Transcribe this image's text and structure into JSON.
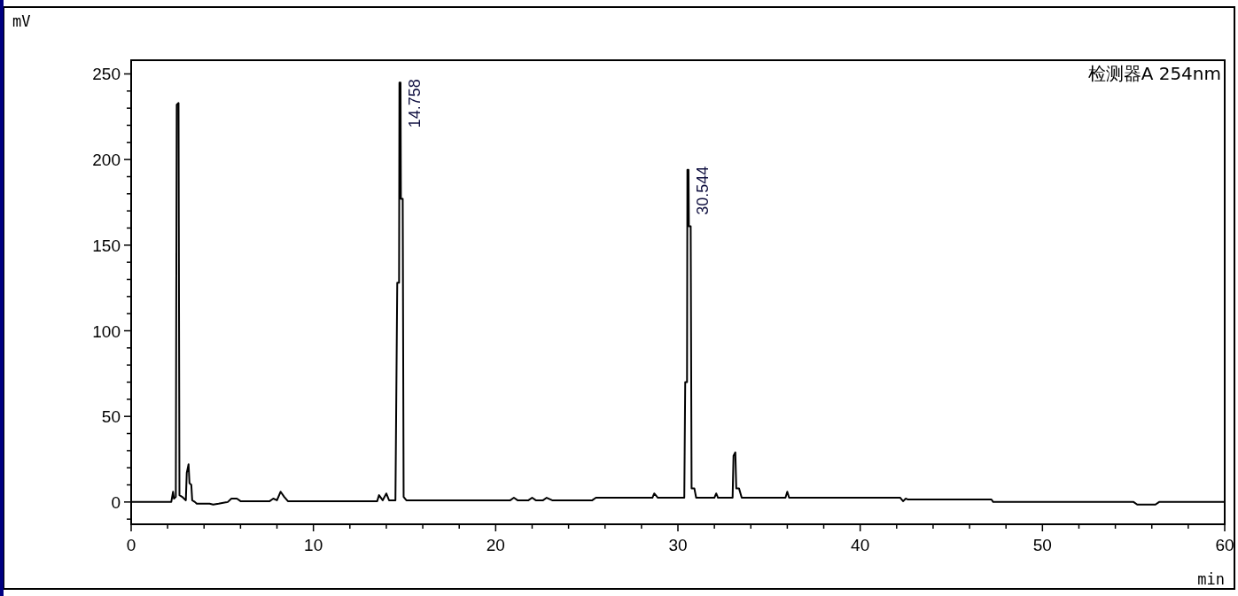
{
  "chart_data": {
    "type": "line",
    "xlabel": "min",
    "ylabel": "mV",
    "xlim": [
      0,
      60
    ],
    "ylim": [
      -13,
      258
    ],
    "xticks": [
      0,
      {
        "value": 2,
        "label": null
      },
      {
        "value": 4,
        "label": null
      },
      {
        "value": 6,
        "label": null
      },
      {
        "value": 8,
        "label": null
      },
      10,
      {
        "value": 12,
        "label": null
      },
      {
        "value": 14,
        "label": null
      },
      {
        "value": 16,
        "label": null
      },
      {
        "value": 18,
        "label": null
      },
      20,
      {
        "value": 22,
        "label": null
      },
      {
        "value": 24,
        "label": null
      },
      {
        "value": 26,
        "label": null
      },
      {
        "value": 28,
        "label": null
      },
      30,
      {
        "value": 32,
        "label": null
      },
      {
        "value": 34,
        "label": null
      },
      {
        "value": 36,
        "label": null
      },
      {
        "value": 38,
        "label": null
      },
      40,
      {
        "value": 42,
        "label": null
      },
      {
        "value": 44,
        "label": null
      },
      {
        "value": 46,
        "label": null
      },
      {
        "value": 48,
        "label": null
      },
      50,
      {
        "value": 52,
        "label": null
      },
      {
        "value": 54,
        "label": null
      },
      {
        "value": 56,
        "label": null
      },
      {
        "value": 58,
        "label": null
      },
      60
    ],
    "yticks": [
      {
        "value": -10,
        "label": null
      },
      0,
      {
        "value": 10,
        "label": null
      },
      {
        "value": 20,
        "label": null
      },
      {
        "value": 30,
        "label": null
      },
      {
        "value": 40,
        "label": null
      },
      50,
      {
        "value": 60,
        "label": null
      },
      {
        "value": 70,
        "label": null
      },
      {
        "value": 80,
        "label": null
      },
      {
        "value": 90,
        "label": null
      },
      100,
      {
        "value": 110,
        "label": null
      },
      {
        "value": 120,
        "label": null
      },
      {
        "value": 130,
        "label": null
      },
      {
        "value": 140,
        "label": null
      },
      150,
      {
        "value": 160,
        "label": null
      },
      {
        "value": 170,
        "label": null
      },
      {
        "value": 180,
        "label": null
      },
      {
        "value": 190,
        "label": null
      },
      200,
      {
        "value": 210,
        "label": null
      },
      {
        "value": 220,
        "label": null
      },
      {
        "value": 230,
        "label": null
      },
      {
        "value": 240,
        "label": null
      },
      250
    ],
    "grid": false,
    "marker": "none",
    "line_style": "solid",
    "annotations": [
      "检测器A 254nm",
      {
        "text": "14.758",
        "x": 14.758,
        "y": 245
      },
      {
        "text": "30.544",
        "x": 30.544,
        "y": 194
      }
    ],
    "series": [
      {
        "color": "#000000",
        "x": [
          0,
          2.2,
          2.3,
          2.35,
          2.45,
          2.5,
          2.6,
          2.65,
          2.8,
          3.0,
          3.05,
          3.15,
          3.2,
          3.3,
          3.35,
          3.5,
          3.6,
          4.3,
          4.5,
          4.8,
          5.3,
          5.5,
          5.8,
          6.0,
          7.6,
          7.8,
          8.0,
          8.2,
          8.4,
          8.6,
          13.5,
          13.6,
          13.8,
          14.0,
          14.15,
          14.5,
          14.6,
          14.7,
          14.72,
          14.78,
          14.8,
          14.9,
          14.95,
          15.1,
          20.8,
          21.0,
          21.2,
          21.8,
          22.0,
          22.2,
          22.6,
          22.8,
          23.1,
          25.3,
          25.5,
          28.6,
          28.7,
          28.9,
          30.35,
          30.4,
          30.5,
          30.52,
          30.58,
          30.6,
          30.7,
          30.75,
          30.9,
          31.0,
          32.0,
          32.1,
          32.2,
          33.0,
          33.05,
          33.15,
          33.2,
          33.35,
          33.5,
          35.9,
          36.0,
          36.1,
          42.2,
          42.35,
          42.5,
          42.6,
          47.2,
          47.3,
          55.0,
          55.2,
          56.2,
          56.4,
          60
        ],
        "values": [
          0,
          0,
          6,
          2,
          3,
          232,
          233,
          4,
          3,
          1,
          17,
          22,
          11,
          10,
          1,
          0,
          -1,
          -1,
          -1.5,
          -1,
          0,
          2,
          2,
          0.5,
          0.5,
          2,
          1,
          6,
          3,
          0.5,
          0.5,
          4,
          1,
          5,
          1,
          1,
          128,
          128,
          245,
          245,
          177,
          177,
          3,
          1,
          1,
          2.5,
          1,
          1,
          2.5,
          1,
          1,
          2.5,
          1,
          1,
          2.5,
          2.5,
          5,
          2.5,
          2.5,
          70,
          70,
          194,
          194,
          161,
          161,
          8,
          8,
          2.5,
          2.5,
          5,
          2.5,
          2.5,
          27,
          29,
          8,
          8,
          2.5,
          2.5,
          6,
          2.5,
          2.5,
          0.5,
          2,
          1.5,
          1.5,
          0,
          0,
          -1.5,
          -1.5,
          0,
          0
        ]
      }
    ]
  }
}
